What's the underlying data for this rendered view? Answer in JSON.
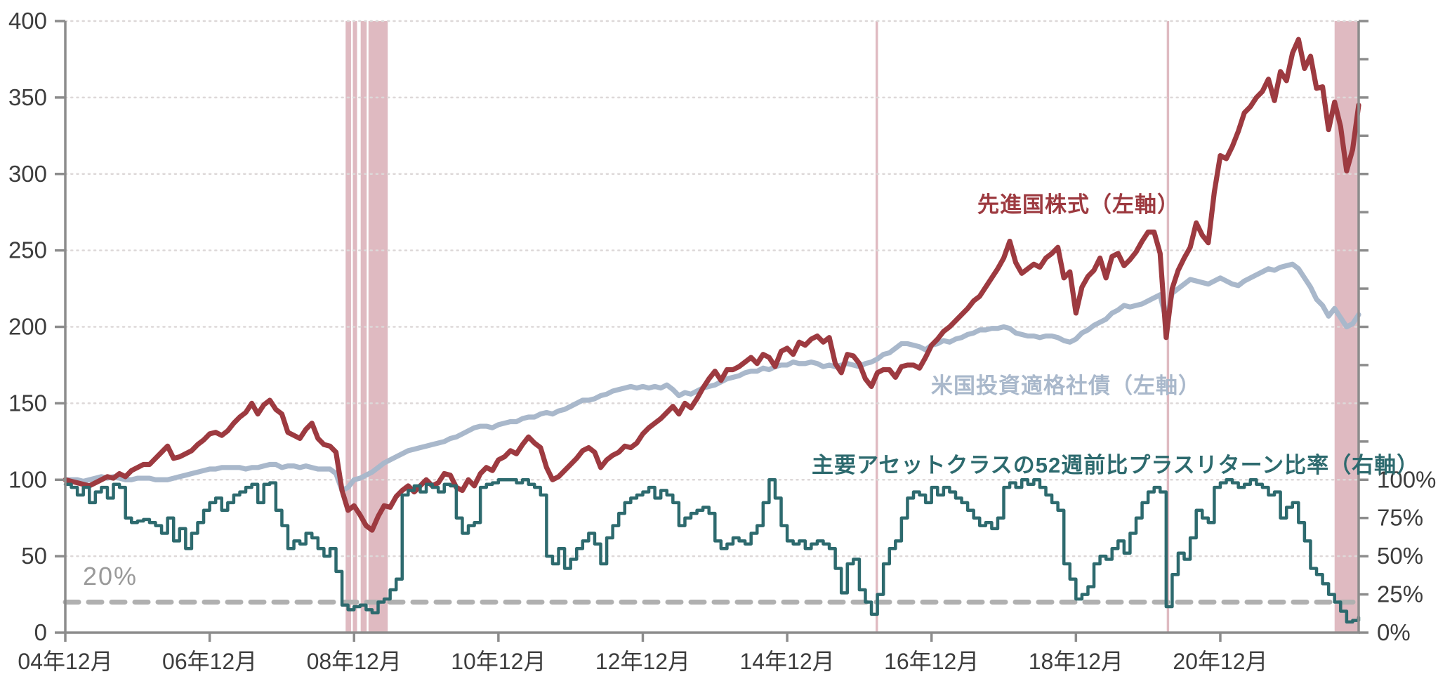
{
  "chart_data": {
    "type": "line",
    "title": "",
    "x_axis": {
      "labels": [
        "04年12月",
        "06年12月",
        "08年12月",
        "10年12月",
        "12年12月",
        "14年12月",
        "16年12月",
        "18年12月",
        "20年12月"
      ],
      "label_interval_months": 24,
      "start_month": "2004-12",
      "end_month": "2022-11"
    },
    "left_axis": {
      "min": 0,
      "max": 400,
      "ticks": [
        "0",
        "50",
        "100",
        "150",
        "200",
        "250",
        "300",
        "350",
        "400"
      ],
      "tick_step": 50
    },
    "right_axis": {
      "min": 0,
      "max": 100,
      "ticks": [
        "0%",
        "25%",
        "50%",
        "75%",
        "100%"
      ],
      "tick_step": 25,
      "note": "100% aligns with 100 on left axis; unlabeled ticks continue above"
    },
    "threshold": {
      "value": 20,
      "label": "20%",
      "color": "#b0b0b0"
    },
    "grid": {
      "horizontal": true,
      "color": "#ddd8d8"
    },
    "shaded_periods": [
      {
        "start_month": 46.6,
        "end_month": 47.5
      },
      {
        "start_month": 47.8,
        "end_month": 48.5
      },
      {
        "start_month": 49.1,
        "end_month": 50.1
      },
      {
        "start_month": 50.4,
        "end_month": 53.6
      },
      {
        "start_month": 134.7,
        "end_month": 135.1
      },
      {
        "start_month": 183.1,
        "end_month": 183.5
      },
      {
        "start_month": 211.0,
        "end_month": 215.0
      }
    ],
    "shading_color": "#dfbac1",
    "series": [
      {
        "name": "米国投資適格社債（左軸）",
        "axis": "left",
        "color": "#a9b8cb",
        "style": "line",
        "values": [
          100,
          100,
          100,
          99,
          100,
          101,
          102,
          101,
          102,
          101,
          100,
          100,
          101,
          101,
          101,
          100,
          100,
          100,
          101,
          102,
          103,
          104,
          105,
          106,
          107,
          107,
          108,
          108,
          108,
          108,
          107,
          108,
          108,
          109,
          110,
          110,
          108,
          109,
          109,
          108,
          109,
          108,
          107,
          107,
          107,
          104,
          93,
          95,
          100,
          101,
          103,
          105,
          108,
          111,
          113,
          115,
          117,
          119,
          120,
          121,
          122,
          123,
          124,
          125,
          127,
          128,
          130,
          132,
          134,
          135,
          135,
          134,
          136,
          137,
          138,
          138,
          140,
          141,
          141,
          143,
          144,
          143,
          145,
          146,
          148,
          150,
          152,
          152,
          153,
          155,
          156,
          158,
          159,
          160,
          161,
          160,
          161,
          160,
          161,
          160,
          162,
          159,
          155,
          157,
          156,
          158,
          160,
          161,
          162,
          164,
          166,
          167,
          168,
          170,
          171,
          171,
          173,
          172,
          174,
          175,
          175,
          177,
          176,
          176,
          177,
          176,
          174,
          175,
          174,
          175,
          176,
          175,
          174,
          176,
          177,
          179,
          182,
          183,
          186,
          189,
          189,
          188,
          187,
          185,
          188,
          189,
          191,
          190,
          192,
          193,
          195,
          196,
          198,
          198,
          199,
          199,
          200,
          199,
          196,
          195,
          194,
          194,
          193,
          194,
          194,
          193,
          191,
          190,
          192,
          196,
          198,
          201,
          203,
          205,
          209,
          211,
          214,
          213,
          214,
          215,
          217,
          219,
          221,
          204,
          222,
          225,
          228,
          231,
          230,
          229,
          228,
          230,
          232,
          230,
          228,
          227,
          230,
          232,
          234,
          236,
          238,
          237,
          239,
          240,
          241,
          238,
          232,
          226,
          218,
          214,
          207,
          212,
          206,
          200,
          202,
          208
        ]
      },
      {
        "name": "先進国株式（左軸）",
        "axis": "left",
        "color": "#9d3a40",
        "style": "line",
        "values": [
          100,
          99,
          98,
          97,
          96,
          98,
          100,
          102,
          101,
          104,
          102,
          106,
          108,
          110,
          110,
          114,
          118,
          122,
          114,
          115,
          117,
          119,
          123,
          126,
          130,
          131,
          129,
          132,
          137,
          141,
          144,
          150,
          143,
          149,
          152,
          146,
          143,
          131,
          129,
          127,
          133,
          137,
          127,
          123,
          122,
          118,
          93,
          80,
          83,
          77,
          70,
          67,
          76,
          83,
          82,
          89,
          93,
          96,
          92,
          96,
          100,
          96,
          98,
          104,
          103,
          95,
          93,
          100,
          96,
          104,
          108,
          106,
          113,
          115,
          119,
          117,
          123,
          128,
          124,
          121,
          108,
          100,
          102,
          106,
          110,
          114,
          119,
          121,
          118,
          108,
          113,
          116,
          118,
          122,
          121,
          124,
          130,
          134,
          137,
          140,
          144,
          148,
          143,
          150,
          147,
          153,
          160,
          166,
          171,
          165,
          172,
          172,
          174,
          177,
          180,
          176,
          182,
          180,
          174,
          184,
          186,
          182,
          190,
          188,
          192,
          194,
          190,
          193,
          176,
          170,
          182,
          181,
          176,
          166,
          161,
          170,
          172,
          172,
          167,
          174,
          175,
          175,
          173,
          180,
          188,
          192,
          197,
          200,
          204,
          208,
          212,
          217,
          220,
          226,
          232,
          238,
          245,
          256,
          242,
          235,
          238,
          241,
          239,
          245,
          248,
          252,
          232,
          236,
          209,
          226,
          233,
          237,
          245,
          232,
          246,
          248,
          240,
          244,
          249,
          256,
          262,
          262,
          248,
          193,
          225,
          237,
          245,
          252,
          268,
          260,
          255,
          288,
          312,
          310,
          318,
          328,
          340,
          344,
          350,
          354,
          362,
          348,
          367,
          361,
          379,
          388,
          369,
          377,
          356,
          357,
          329,
          347,
          331,
          302,
          316,
          345
        ]
      },
      {
        "name": "主要アセットクラスの52週前比プラスリターン比率（右軸）",
        "axis": "right",
        "color": "#2d6a6e",
        "style": "step",
        "values": [
          97,
          95,
          90,
          95,
          85,
          92,
          95,
          88,
          97,
          95,
          75,
          72,
          73,
          74,
          72,
          70,
          65,
          75,
          60,
          68,
          55,
          65,
          72,
          80,
          85,
          88,
          80,
          85,
          90,
          92,
          95,
          97,
          85,
          97,
          98,
          80,
          70,
          55,
          60,
          58,
          65,
          62,
          55,
          50,
          55,
          40,
          18,
          15,
          17,
          18,
          15,
          13,
          20,
          22,
          28,
          35,
          90,
          93,
          96,
          92,
          97,
          95,
          92,
          97,
          96,
          75,
          65,
          70,
          72,
          95,
          97,
          98,
          100,
          100,
          100,
          98,
          100,
          97,
          95,
          90,
          50,
          45,
          55,
          42,
          48,
          55,
          60,
          65,
          58,
          45,
          62,
          70,
          78,
          85,
          88,
          90,
          92,
          95,
          88,
          93,
          90,
          85,
          70,
          75,
          78,
          80,
          82,
          78,
          60,
          55,
          58,
          62,
          60,
          58,
          65,
          70,
          85,
          100,
          88,
          70,
          60,
          58,
          60,
          55,
          58,
          60,
          58,
          55,
          42,
          26,
          45,
          48,
          28,
          20,
          12,
          25,
          45,
          55,
          60,
          75,
          88,
          92,
          90,
          85,
          95,
          90,
          95,
          92,
          88,
          85,
          80,
          75,
          70,
          72,
          68,
          75,
          95,
          98,
          95,
          100,
          97,
          100,
          95,
          90,
          85,
          80,
          45,
          35,
          22,
          25,
          30,
          45,
          50,
          48,
          55,
          60,
          52,
          65,
          75,
          85,
          92,
          95,
          92,
          17,
          38,
          52,
          48,
          62,
          80,
          75,
          72,
          95,
          98,
          100,
          98,
          95,
          97,
          100,
          97,
          95,
          90,
          92,
          75,
          82,
          85,
          72,
          60,
          42,
          38,
          32,
          25,
          20,
          14,
          7,
          8,
          10
        ]
      }
    ],
    "legend_position": "inline-annotations",
    "axis_color": "#8c8c8c",
    "tick_label_color": "#3d3d3d"
  },
  "labels": {
    "equities_legend": "先進国株式（左軸）",
    "bonds_legend": "米国投資適格社債（左軸）",
    "ratio_legend": "主要アセットクラスの52週前比プラスリターン比率（右軸）",
    "threshold": "20%"
  }
}
